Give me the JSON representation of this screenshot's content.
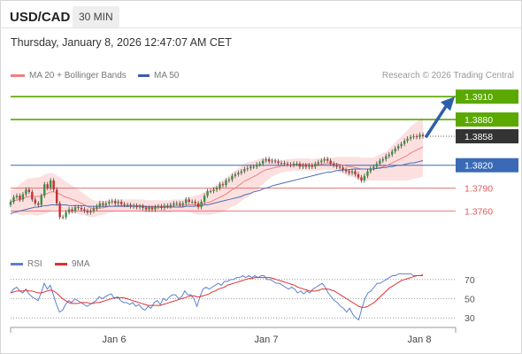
{
  "header": {
    "symbol": "USD/CAD",
    "timeframe": "30 MIN",
    "datetime": "Thursday, January 8, 2026 12:47:07 AM CET"
  },
  "legend": {
    "ma20_label": "MA 20 + Bollinger Bands",
    "ma50_label": "MA 50",
    "credit": "Research © 2026 Trading Central"
  },
  "rsi_legend": {
    "rsi_label": "RSI",
    "ma_label": "9MA"
  },
  "colors": {
    "resistance": "#5aa800",
    "support": "#e45a5a",
    "pivot": "#3a6ab6",
    "current": "#333333",
    "ma20": "#f08080",
    "ma50": "#4a6fb5",
    "band_fill": "#fbdada",
    "candle_up": "#3f8f3f",
    "candle_down": "#c53030",
    "arrow": "#2f5fa8",
    "rsi_line": "#5b80d0",
    "rsi_ma": "#e03030"
  },
  "chart_data": [
    {
      "type": "candlestick",
      "title": "USD/CAD",
      "x_ticks": [
        "Jan 6",
        "Jan 7",
        "Jan 8"
      ],
      "ylim": [
        1.37,
        1.393
      ],
      "levels": [
        {
          "value": 1.391,
          "label": "1.3910",
          "kind": "resistance"
        },
        {
          "value": 1.388,
          "label": "1.3880",
          "kind": "resistance"
        },
        {
          "value": 1.3858,
          "label": "1.3858",
          "kind": "current"
        },
        {
          "value": 1.382,
          "label": "1.3820",
          "kind": "pivot"
        },
        {
          "value": 1.379,
          "label": "1.3790",
          "kind": "support"
        },
        {
          "value": 1.376,
          "label": "1.3760",
          "kind": "support"
        }
      ],
      "close": [
        1.3772,
        1.3778,
        1.378,
        1.3775,
        1.3782,
        1.3788,
        1.3785,
        1.3775,
        1.377,
        1.3768,
        1.378,
        1.3795,
        1.379,
        1.38,
        1.3788,
        1.377,
        1.3752,
        1.3752,
        1.3758,
        1.3762,
        1.376,
        1.3765,
        1.3764,
        1.3762,
        1.376,
        1.3758,
        1.376,
        1.3763,
        1.3766,
        1.377,
        1.3768,
        1.377,
        1.3772,
        1.3773,
        1.377,
        1.3772,
        1.3769,
        1.3768,
        1.3768,
        1.3766,
        1.3767,
        1.3765,
        1.3766,
        1.3764,
        1.3762,
        1.3764,
        1.3762,
        1.3765,
        1.3766,
        1.3764,
        1.3767,
        1.3766,
        1.3768,
        1.377,
        1.377,
        1.3768,
        1.377,
        1.3775,
        1.3772,
        1.3772,
        1.377,
        1.3765,
        1.3772,
        1.378,
        1.3786,
        1.3786,
        1.3788,
        1.379,
        1.3795,
        1.3794,
        1.38,
        1.3801,
        1.3806,
        1.3808,
        1.381,
        1.3812,
        1.3815,
        1.3816,
        1.3818,
        1.3818,
        1.3821,
        1.3822,
        1.3826,
        1.3828,
        1.3825,
        1.3826,
        1.3825,
        1.3823,
        1.3823,
        1.3822,
        1.3821,
        1.382,
        1.3822,
        1.3822,
        1.3818,
        1.382,
        1.3818,
        1.382,
        1.3818,
        1.3822,
        1.3824,
        1.3826,
        1.3828,
        1.3826,
        1.3822,
        1.382,
        1.3818,
        1.3817,
        1.3814,
        1.3812,
        1.381,
        1.3812,
        1.3808,
        1.3804,
        1.38,
        1.3806,
        1.3812,
        1.3816,
        1.3818,
        1.3822,
        1.3826,
        1.3828,
        1.3832,
        1.3834,
        1.3838,
        1.3842,
        1.3845,
        1.3848,
        1.3852,
        1.3855,
        1.3857,
        1.3858,
        1.3857,
        1.386,
        1.3858
      ],
      "ma20": [
        1.3772,
        1.3773,
        1.3774,
        1.3775,
        1.3776,
        1.3778,
        1.3779,
        1.3779,
        1.3779,
        1.3779,
        1.378,
        1.3782,
        1.3783,
        1.3785,
        1.3785,
        1.3784,
        1.3782,
        1.378,
        1.3778,
        1.3777,
        1.3775,
        1.3774,
        1.3772,
        1.377,
        1.3768,
        1.3766,
        1.3764,
        1.3763,
        1.3763,
        1.3764,
        1.3764,
        1.3765,
        1.3766,
        1.3766,
        1.3767,
        1.3767,
        1.3767,
        1.3767,
        1.3767,
        1.3767,
        1.3767,
        1.3767,
        1.3767,
        1.3767,
        1.3766,
        1.3766,
        1.3766,
        1.3766,
        1.3766,
        1.3766,
        1.3766,
        1.3766,
        1.3766,
        1.3767,
        1.3767,
        1.3767,
        1.3767,
        1.3768,
        1.3768,
        1.3768,
        1.3768,
        1.3768,
        1.3769,
        1.377,
        1.3771,
        1.3772,
        1.3774,
        1.3776,
        1.3778,
        1.378,
        1.3782,
        1.3785,
        1.3788,
        1.379,
        1.3793,
        1.3796,
        1.3799,
        1.3801,
        1.3803,
        1.3805,
        1.3807,
        1.381,
        1.3812,
        1.3814,
        1.3815,
        1.3816,
        1.3817,
        1.3818,
        1.3819,
        1.3819,
        1.382,
        1.382,
        1.3821,
        1.3821,
        1.3821,
        1.3821,
        1.3821,
        1.3821,
        1.382,
        1.3821,
        1.3821,
        1.3821,
        1.3822,
        1.3822,
        1.3822,
        1.3822,
        1.3822,
        1.3821,
        1.382,
        1.3819,
        1.3818,
        1.3818,
        1.3817,
        1.3816,
        1.3815,
        1.3815,
        1.3815,
        1.3815,
        1.3815,
        1.3816,
        1.3817,
        1.3818,
        1.3819,
        1.3821,
        1.3823,
        1.3825,
        1.3827,
        1.3829,
        1.3831,
        1.3833,
        1.3836,
        1.3838,
        1.384,
        1.3842,
        1.3844
      ],
      "ma50": [
        1.3756,
        1.3758,
        1.3759,
        1.376,
        1.3761,
        1.3762,
        1.3763,
        1.3764,
        1.3765,
        1.3765,
        1.3766,
        1.3767,
        1.3767,
        1.3768,
        1.3768,
        1.3768,
        1.3768,
        1.3768,
        1.3768,
        1.3767,
        1.3767,
        1.3767,
        1.3767,
        1.3767,
        1.3767,
        1.3766,
        1.3766,
        1.3766,
        1.3766,
        1.3766,
        1.3766,
        1.3766,
        1.3766,
        1.3766,
        1.3766,
        1.3766,
        1.3766,
        1.3766,
        1.3766,
        1.3766,
        1.3766,
        1.3766,
        1.3766,
        1.3766,
        1.3765,
        1.3765,
        1.3765,
        1.3765,
        1.3765,
        1.3765,
        1.3765,
        1.3765,
        1.3765,
        1.3765,
        1.3765,
        1.3765,
        1.3765,
        1.3766,
        1.3766,
        1.3766,
        1.3766,
        1.3767,
        1.3767,
        1.3768,
        1.3768,
        1.3769,
        1.377,
        1.3771,
        1.3772,
        1.3773,
        1.3774,
        1.3775,
        1.3776,
        1.3777,
        1.3778,
        1.3779,
        1.3781,
        1.3782,
        1.3783,
        1.3785,
        1.3786,
        1.3787,
        1.3789,
        1.379,
        1.3791,
        1.3793,
        1.3794,
        1.3795,
        1.3796,
        1.3797,
        1.3798,
        1.3799,
        1.38,
        1.3801,
        1.3802,
        1.3803,
        1.3804,
        1.3805,
        1.3806,
        1.3807,
        1.3808,
        1.3809,
        1.381,
        1.3811,
        1.3811,
        1.3812,
        1.3813,
        1.3813,
        1.3814,
        1.3814,
        1.3814,
        1.3815,
        1.3815,
        1.3815,
        1.3815,
        1.3815,
        1.3815,
        1.3815,
        1.3815,
        1.3816,
        1.3816,
        1.3817,
        1.3817,
        1.3818,
        1.3818,
        1.3819,
        1.382,
        1.382,
        1.3821,
        1.3822,
        1.3823,
        1.3823,
        1.3824,
        1.3825,
        1.3826
      ],
      "band_width": [
        0.0015,
        0.0016,
        0.0018,
        0.002,
        0.0022,
        0.0023,
        0.0024,
        0.0024,
        0.0025,
        0.0025,
        0.0025,
        0.0026,
        0.0026,
        0.0025,
        0.0024,
        0.0023,
        0.0022,
        0.0021,
        0.002,
        0.0019,
        0.0018,
        0.0017,
        0.0016,
        0.0015,
        0.0014,
        0.0013,
        0.0012,
        0.0011,
        0.001,
        0.001,
        0.0009,
        0.0009,
        0.0008,
        0.0008,
        0.0008,
        0.0008,
        0.0008,
        0.0008,
        0.0008,
        0.0008,
        0.0008,
        0.0008,
        0.0008,
        0.0008,
        0.0008,
        0.0008,
        0.0008,
        0.0008,
        0.0008,
        0.0008,
        0.0008,
        0.0008,
        0.0008,
        0.0008,
        0.0008,
        0.0008,
        0.0008,
        0.0009,
        0.001,
        0.0011,
        0.0012,
        0.0013,
        0.0014,
        0.0015,
        0.0016,
        0.0017,
        0.0018,
        0.0019,
        0.002,
        0.0021,
        0.0021,
        0.0022,
        0.0022,
        0.0023,
        0.0023,
        0.0023,
        0.0023,
        0.0023,
        0.0022,
        0.0021,
        0.002,
        0.0019,
        0.0017,
        0.0015,
        0.0013,
        0.0011,
        0.001,
        0.0009,
        0.0008,
        0.0008,
        0.0008,
        0.0008,
        0.0008,
        0.0008,
        0.0008,
        0.0008,
        0.0008,
        0.0008,
        0.0008,
        0.0008,
        0.0008,
        0.0008,
        0.0008,
        0.0008,
        0.0008,
        0.0008,
        0.0009,
        0.001,
        0.0011,
        0.0012,
        0.0013,
        0.0013,
        0.0014,
        0.0015,
        0.0015,
        0.0015,
        0.0015,
        0.0015,
        0.0015,
        0.0016,
        0.0017,
        0.0018,
        0.0019,
        0.0021,
        0.0023,
        0.0025,
        0.0027,
        0.0029,
        0.0031,
        0.0033,
        0.0035,
        0.0036,
        0.0037,
        0.0038,
        0.0039
      ]
    },
    {
      "type": "line",
      "title": "RSI",
      "ylim": [
        20,
        80
      ],
      "y_ticks": [
        70,
        50,
        30
      ],
      "series": [
        {
          "name": "RSI",
          "values": [
            56,
            60,
            62,
            58,
            56,
            60,
            55,
            52,
            50,
            48,
            56,
            66,
            60,
            64,
            54,
            44,
            36,
            38,
            44,
            48,
            46,
            50,
            48,
            46,
            44,
            42,
            44,
            46,
            48,
            52,
            50,
            52,
            54,
            55,
            50,
            52,
            48,
            46,
            46,
            44,
            46,
            42,
            44,
            40,
            38,
            42,
            40,
            46,
            48,
            44,
            50,
            48,
            52,
            54,
            54,
            50,
            52,
            58,
            54,
            54,
            50,
            42,
            52,
            60,
            62,
            60,
            62,
            64,
            66,
            64,
            68,
            68,
            70,
            70,
            72,
            72,
            74,
            72,
            74,
            72,
            74,
            72,
            74,
            74,
            70,
            70,
            68,
            66,
            66,
            64,
            62,
            60,
            62,
            60,
            56,
            58,
            55,
            58,
            56,
            60,
            62,
            64,
            66,
            62,
            56,
            52,
            48,
            46,
            42,
            40,
            36,
            40,
            34,
            30,
            28,
            40,
            50,
            56,
            58,
            62,
            66,
            66,
            68,
            70,
            72,
            74,
            74,
            76,
            76,
            76,
            76,
            76,
            74,
            74,
            74,
            74
          ]
        },
        {
          "name": "9MA",
          "values": [
            56,
            57,
            58,
            58,
            58,
            59,
            58,
            58,
            57,
            56,
            56,
            57,
            58,
            59,
            58,
            56,
            53,
            50,
            48,
            46,
            45,
            45,
            45,
            46,
            46,
            46,
            45,
            45,
            46,
            46,
            47,
            48,
            49,
            50,
            51,
            51,
            51,
            51,
            50,
            49,
            48,
            47,
            46,
            45,
            44,
            43,
            43,
            43,
            43,
            43,
            44,
            45,
            46,
            47,
            48,
            49,
            50,
            51,
            52,
            53,
            53,
            52,
            52,
            53,
            54,
            55,
            57,
            58,
            60,
            61,
            62,
            64,
            65,
            66,
            67,
            68,
            69,
            70,
            71,
            71,
            72,
            72,
            72,
            72,
            72,
            72,
            71,
            70,
            69,
            68,
            67,
            66,
            65,
            64,
            62,
            61,
            60,
            59,
            58,
            58,
            58,
            59,
            60,
            60,
            60,
            59,
            58,
            56,
            54,
            52,
            50,
            48,
            46,
            44,
            42,
            41,
            41,
            42,
            44,
            46,
            49,
            52,
            55,
            58,
            61,
            63,
            65,
            67,
            69,
            70,
            71,
            72,
            73,
            74,
            74,
            75
          ]
        }
      ]
    }
  ]
}
